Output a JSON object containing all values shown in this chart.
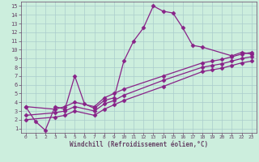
{
  "xlabel": "Windchill (Refroidissement éolien,°C)",
  "bg_color": "#cceedd",
  "line_color": "#882288",
  "grid_color": "#aacccc",
  "spine_color": "#664466",
  "xlim": [
    -0.5,
    23.5
  ],
  "ylim": [
    0.5,
    15.5
  ],
  "xticks": [
    0,
    1,
    2,
    3,
    4,
    5,
    6,
    7,
    8,
    9,
    10,
    11,
    12,
    13,
    14,
    15,
    16,
    17,
    18,
    19,
    20,
    21,
    22,
    23
  ],
  "yticks": [
    1,
    2,
    3,
    4,
    5,
    6,
    7,
    8,
    9,
    10,
    11,
    12,
    13,
    14,
    15
  ],
  "series1_x": [
    0,
    1,
    2,
    3,
    4,
    5,
    6,
    7,
    8,
    9,
    10,
    11,
    12,
    13,
    14,
    15,
    16,
    17,
    18,
    21,
    22,
    23
  ],
  "series1_y": [
    3.5,
    1.8,
    0.8,
    3.5,
    3.2,
    7.0,
    3.8,
    3.3,
    4.2,
    4.5,
    8.7,
    11.0,
    12.5,
    15.0,
    14.4,
    14.2,
    12.5,
    10.5,
    10.3,
    9.3,
    9.7,
    9.5
  ],
  "series2_x": [
    0,
    3,
    4,
    5,
    7,
    8,
    9,
    10,
    14,
    18,
    19,
    20,
    21,
    22,
    23
  ],
  "series2_y": [
    3.5,
    3.2,
    3.5,
    4.0,
    3.5,
    4.5,
    5.0,
    5.5,
    7.0,
    8.5,
    8.7,
    8.9,
    9.2,
    9.5,
    9.7
  ],
  "series3_x": [
    0,
    3,
    4,
    5,
    7,
    8,
    9,
    10,
    14,
    18,
    19,
    20,
    21,
    22,
    23
  ],
  "series3_y": [
    2.5,
    2.8,
    3.0,
    3.5,
    3.0,
    3.8,
    4.2,
    4.8,
    6.5,
    8.0,
    8.2,
    8.4,
    8.7,
    9.0,
    9.2
  ],
  "series4_x": [
    0,
    3,
    4,
    5,
    7,
    8,
    9,
    10,
    14,
    18,
    19,
    20,
    21,
    22,
    23
  ],
  "series4_y": [
    2.0,
    2.3,
    2.5,
    3.0,
    2.5,
    3.2,
    3.7,
    4.2,
    5.8,
    7.5,
    7.7,
    7.9,
    8.2,
    8.5,
    8.7
  ],
  "markersize": 2.5,
  "linewidth": 0.9
}
